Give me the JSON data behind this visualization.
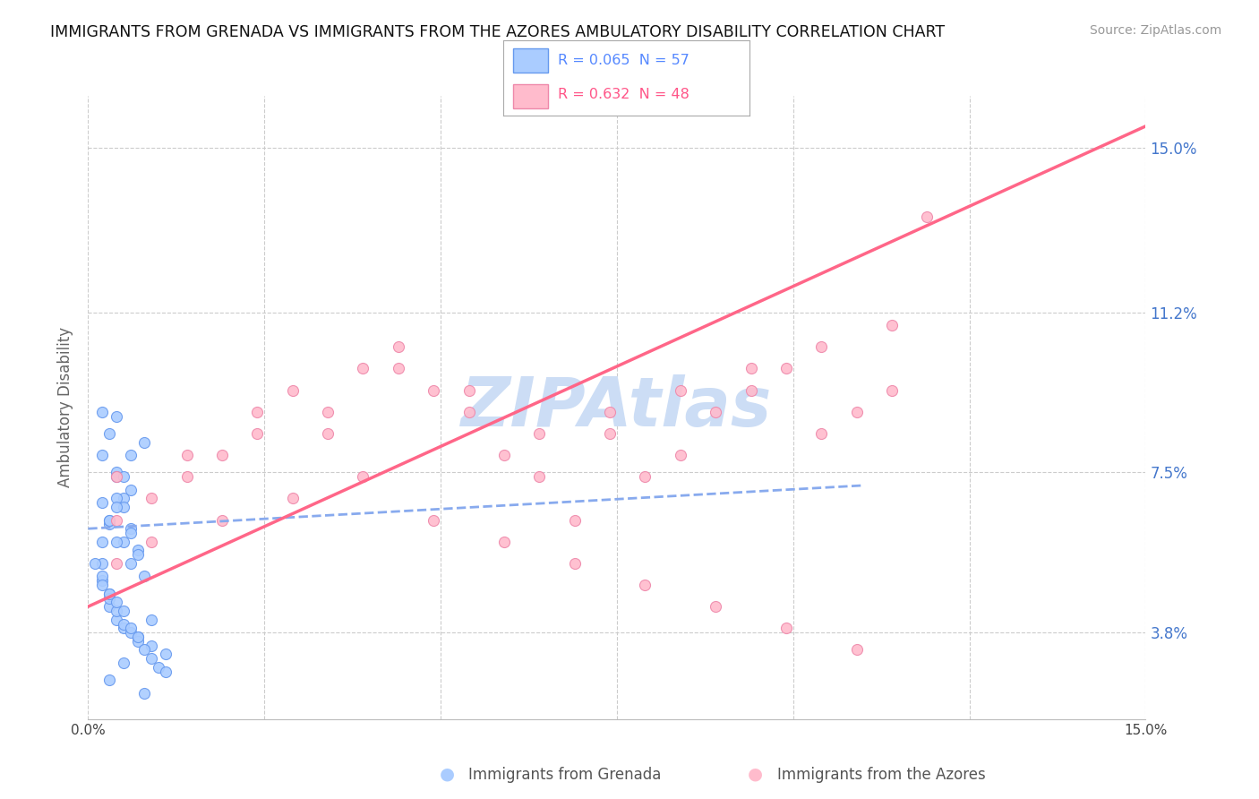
{
  "title": "IMMIGRANTS FROM GRENADA VS IMMIGRANTS FROM THE AZORES AMBULATORY DISABILITY CORRELATION CHART",
  "source": "Source: ZipAtlas.com",
  "ylabel": "Ambulatory Disability",
  "yticks": [
    0.038,
    0.075,
    0.112,
    0.15
  ],
  "ytick_labels": [
    "3.8%",
    "7.5%",
    "11.2%",
    "15.0%"
  ],
  "xmin": 0.0,
  "xmax": 0.15,
  "ymin": 0.018,
  "ymax": 0.162,
  "legend_r1": "R = 0.065",
  "legend_n1": "N = 57",
  "legend_r2": "R = 0.632",
  "legend_n2": "N = 48",
  "grenada_color": "#aaccff",
  "grenada_edge": "#6699ee",
  "azores_color": "#ffbbcc",
  "azores_edge": "#ee88aa",
  "grenada_line_color": "#88aaee",
  "azores_line_color": "#ff6688",
  "watermark": "ZIPAtlas",
  "watermark_color": "#ccddf5",
  "legend1_text_color": "#5588ff",
  "legend2_text_color": "#ff5588",
  "bottom_label1": "Immigrants from Grenada",
  "bottom_label2": "Immigrants from the Azores",
  "ytick_label_color": "#4477cc",
  "xtick_label_color": "#444444",
  "title_color": "#111111",
  "source_color": "#999999",
  "ylabel_color": "#666666",
  "grid_color": "#cccccc",
  "grenada_x": [
    0.004,
    0.008,
    0.004,
    0.006,
    0.002,
    0.003,
    0.005,
    0.006,
    0.002,
    0.003,
    0.003,
    0.004,
    0.005,
    0.007,
    0.009,
    0.011,
    0.002,
    0.004,
    0.003,
    0.005,
    0.006,
    0.002,
    0.003,
    0.002,
    0.004,
    0.005,
    0.006,
    0.007,
    0.002,
    0.003,
    0.004,
    0.005,
    0.006,
    0.007,
    0.008,
    0.009,
    0.01,
    0.011,
    0.002,
    0.003,
    0.004,
    0.005,
    0.004,
    0.006,
    0.007,
    0.008,
    0.002,
    0.003,
    0.004,
    0.005,
    0.009,
    0.006,
    0.007,
    0.005,
    0.003,
    0.008,
    0.001
  ],
  "grenada_y": [
    0.075,
    0.082,
    0.088,
    0.079,
    0.068,
    0.063,
    0.059,
    0.054,
    0.05,
    0.047,
    0.044,
    0.041,
    0.039,
    0.037,
    0.035,
    0.033,
    0.054,
    0.059,
    0.064,
    0.069,
    0.071,
    0.079,
    0.084,
    0.089,
    0.074,
    0.067,
    0.062,
    0.057,
    0.051,
    0.046,
    0.043,
    0.04,
    0.038,
    0.036,
    0.034,
    0.032,
    0.03,
    0.029,
    0.059,
    0.064,
    0.069,
    0.074,
    0.067,
    0.061,
    0.056,
    0.051,
    0.049,
    0.047,
    0.045,
    0.043,
    0.041,
    0.039,
    0.037,
    0.031,
    0.027,
    0.024,
    0.054
  ],
  "azores_x": [
    0.004,
    0.009,
    0.014,
    0.019,
    0.024,
    0.029,
    0.034,
    0.039,
    0.044,
    0.049,
    0.054,
    0.059,
    0.064,
    0.069,
    0.074,
    0.079,
    0.084,
    0.089,
    0.094,
    0.099,
    0.104,
    0.109,
    0.114,
    0.119,
    0.004,
    0.014,
    0.024,
    0.034,
    0.044,
    0.054,
    0.064,
    0.074,
    0.084,
    0.094,
    0.104,
    0.114,
    0.004,
    0.009,
    0.019,
    0.029,
    0.039,
    0.049,
    0.059,
    0.069,
    0.079,
    0.089,
    0.099,
    0.109
  ],
  "azores_y": [
    0.064,
    0.069,
    0.074,
    0.079,
    0.089,
    0.094,
    0.084,
    0.099,
    0.104,
    0.094,
    0.089,
    0.079,
    0.074,
    0.064,
    0.084,
    0.074,
    0.079,
    0.089,
    0.094,
    0.099,
    0.084,
    0.089,
    0.094,
    0.134,
    0.074,
    0.079,
    0.084,
    0.089,
    0.099,
    0.094,
    0.084,
    0.089,
    0.094,
    0.099,
    0.104,
    0.109,
    0.054,
    0.059,
    0.064,
    0.069,
    0.074,
    0.064,
    0.059,
    0.054,
    0.049,
    0.044,
    0.039,
    0.034
  ],
  "grenada_trend_x": [
    0.0,
    0.11
  ],
  "grenada_trend_y": [
    0.062,
    0.072
  ],
  "azores_trend_x": [
    0.0,
    0.15
  ],
  "azores_trend_y": [
    0.044,
    0.155
  ]
}
